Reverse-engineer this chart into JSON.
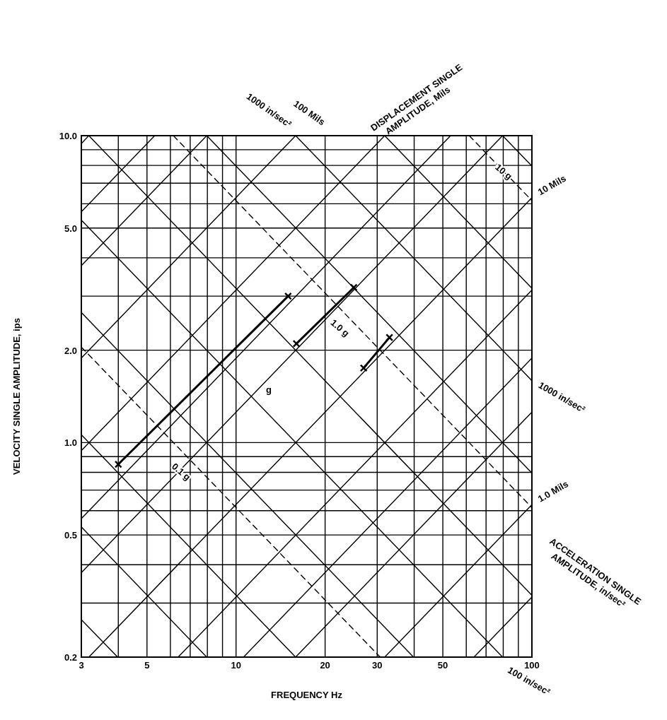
{
  "chart_data": {
    "type": "line",
    "xlabel": "FREQUENCY Hz",
    "ylabel": "VELOCITY SINGLE AMPLITUDE, ips",
    "log": "xy",
    "grid": true,
    "xlim": [
      3,
      100
    ],
    "ylim": [
      0.2,
      10
    ],
    "xticks": [
      3,
      {
        "value": 4,
        "label": null
      },
      5,
      {
        "value": 6,
        "label": null
      },
      {
        "value": 7,
        "label": null
      },
      {
        "value": 8,
        "label": null
      },
      {
        "value": 9,
        "label": null
      },
      10,
      20,
      30,
      {
        "value": 40,
        "label": null
      },
      50,
      {
        "value": 60,
        "label": null
      },
      {
        "value": 70,
        "label": null
      },
      {
        "value": 80,
        "label": null
      },
      {
        "value": 90,
        "label": null
      },
      100
    ],
    "yticks": [
      0.2,
      {
        "value": 0.3,
        "label": null
      },
      {
        "value": 0.4,
        "label": null
      },
      0.5,
      {
        "value": 0.6,
        "label": null
      },
      {
        "value": 0.7,
        "label": null
      },
      {
        "value": 0.8,
        "label": null
      },
      {
        "value": 0.9,
        "label": null
      },
      {
        "value": 1,
        "label": "1.0"
      },
      {
        "value": 2,
        "label": "2.0"
      },
      {
        "value": 3,
        "label": null
      },
      {
        "value": 4,
        "label": null
      },
      {
        "value": 5,
        "label": "5.0"
      },
      {
        "value": 6,
        "label": null
      },
      {
        "value": 7,
        "label": null
      },
      {
        "value": 8,
        "label": null
      },
      {
        "value": 9,
        "label": null
      },
      {
        "value": 10,
        "label": "10.0"
      }
    ],
    "series": [
      {
        "color": "#000000",
        "x": [
          63.7,
          100
        ],
        "values": [
          0.2,
          0.314
        ]
      },
      {
        "color": "#000000",
        "x": [
          31.8,
          100
        ],
        "values": [
          0.2,
          0.628
        ]
      },
      {
        "color": "#000000",
        "x": [
          15.9,
          100
        ],
        "values": [
          0.2,
          1.257
        ]
      },
      {
        "color": "#000000",
        "x": [
          10.6,
          100
        ],
        "values": [
          0.2,
          1.885
        ]
      },
      {
        "color": "#000000",
        "x": [
          6.37,
          100
        ],
        "values": [
          0.2,
          3.14
        ]
      },
      {
        "color": "#000000",
        "x": [
          3.18,
          100
        ],
        "values": [
          0.2,
          6.28
        ]
      },
      {
        "color": "#000000",
        "x": [
          3,
          79.6
        ],
        "values": [
          0.377,
          10
        ]
      },
      {
        "color": "#000000",
        "x": [
          3,
          53.1
        ],
        "values": [
          0.565,
          10
        ]
      },
      {
        "color": "#000000",
        "x": [
          3,
          31.8
        ],
        "values": [
          0.942,
          10
        ]
      },
      {
        "color": "#000000",
        "x": [
          3,
          15.9
        ],
        "values": [
          1.885,
          10
        ]
      },
      {
        "color": "#000000",
        "x": [
          3,
          7.96
        ],
        "values": [
          3.77,
          10
        ]
      },
      {
        "color": "#000000",
        "x": [
          3,
          5.31
        ],
        "values": [
          5.65,
          10
        ]
      },
      {
        "color": "#000000",
        "x": [
          3,
          3.18
        ],
        "values": [
          9.42,
          10
        ]
      },
      {
        "color": "#000000",
        "x": [
          3,
          3.98
        ],
        "values": [
          0.265,
          0.2
        ]
      },
      {
        "color": "#000000",
        "x": [
          3,
          7.96
        ],
        "values": [
          0.531,
          0.2
        ]
      },
      {
        "color": "#000000",
        "x": [
          3,
          15.9
        ],
        "values": [
          1.061,
          0.2
        ]
      },
      {
        "color": "#000000",
        "x": [
          3,
          39.8
        ],
        "values": [
          2.653,
          0.2
        ]
      },
      {
        "color": "#000000",
        "x": [
          3,
          79.6
        ],
        "values": [
          5.305,
          0.2
        ]
      },
      {
        "color": "#000000",
        "x": [
          3.18,
          100
        ],
        "values": [
          10,
          0.318
        ]
      },
      {
        "color": "#000000",
        "x": [
          7.96,
          100
        ],
        "values": [
          10,
          0.796
        ]
      },
      {
        "color": "#000000",
        "x": [
          15.9,
          100
        ],
        "values": [
          10,
          1.592
        ]
      },
      {
        "color": "#000000",
        "x": [
          31.8,
          100
        ],
        "values": [
          10,
          3.183
        ]
      },
      {
        "color": "#000000",
        "x": [
          79.6,
          100
        ],
        "values": [
          10,
          7.958
        ]
      },
      {
        "color": "#000000",
        "x": [
          3,
          30.7
        ],
        "values": [
          2.048,
          0.2
        ],
        "line_style": "dashed"
      },
      {
        "color": "#000000",
        "x": [
          6.14,
          100
        ],
        "values": [
          10,
          0.614
        ],
        "line_style": "dashed"
      },
      {
        "color": "#000000",
        "x": [
          61.4,
          100
        ],
        "values": [
          10,
          6.144
        ],
        "line_style": "dashed"
      },
      {
        "color": "#000000",
        "x": [
          4,
          15
        ],
        "values": [
          0.85,
          3.0
        ],
        "marker": "cross"
      },
      {
        "color": "#000000",
        "x": [
          16,
          25
        ],
        "values": [
          2.1,
          3.2
        ],
        "marker": "cross"
      },
      {
        "color": "#000000",
        "x": [
          27,
          33
        ],
        "values": [
          1.75,
          2.2
        ],
        "marker": "cross"
      }
    ],
    "annotations": [
      {
        "text": "1000 in/sec²",
        "x": 15.9,
        "y": 10
      },
      {
        "text": "100 Mils",
        "x": 15.9,
        "y": 10
      },
      "DISPLACEMENT SINGLE AMPLITUDE, Mils",
      {
        "text": "10 Mils",
        "x": 100,
        "y": 6.28
      },
      {
        "text": "1000 in/sec²",
        "x": 100,
        "y": 1.592
      },
      {
        "text": "1.0 Mils",
        "x": 100,
        "y": 0.628
      },
      "ACCELERATION SINGLE AMPLITUDE, in/sec²",
      {
        "text": "100 in/sec²",
        "x": 79.6,
        "y": 0.2
      },
      {
        "text": "10 g",
        "x": 80,
        "y": 7.6
      },
      "1.0 g",
      {
        "text": "0.1 g",
        "x": 6.5,
        "y": 0.8
      },
      "g"
    ]
  }
}
